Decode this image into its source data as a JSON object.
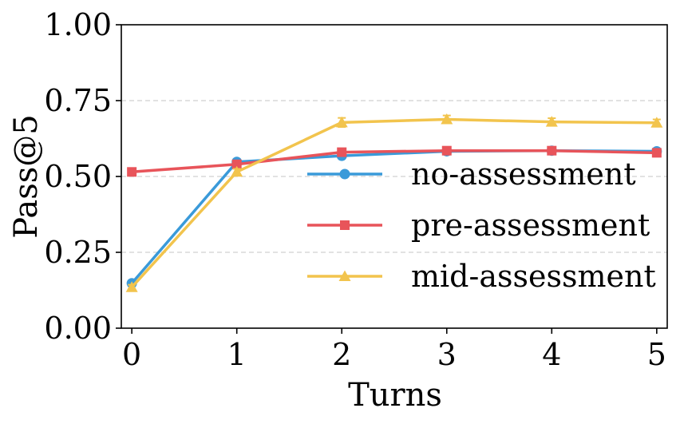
{
  "chart_data": {
    "type": "line",
    "xlabel": "Turns",
    "ylabel": "Pass@5",
    "x": [
      0,
      1,
      2,
      3,
      4,
      5
    ],
    "xlim": [
      -0.1,
      5.1
    ],
    "ylim": [
      0,
      1
    ],
    "xticks": [
      "0",
      "1",
      "2",
      "3",
      "4",
      "5"
    ],
    "yticks": [
      "0.00",
      "0.25",
      "0.50",
      "0.75",
      "1.00"
    ],
    "grid": "horizontal dashed at y ticks",
    "legend_position": "center-right",
    "series": [
      {
        "name": "no-assessment",
        "color": "#3a9ad9",
        "marker": "circle",
        "values": [
          0.148,
          0.548,
          0.568,
          0.583,
          0.585,
          0.583
        ],
        "error": [
          0.008,
          0.008,
          0.008,
          0.008,
          0.008,
          0.008
        ]
      },
      {
        "name": "pre-assessment",
        "color": "#e8545a",
        "marker": "square",
        "values": [
          0.515,
          0.54,
          0.58,
          0.585,
          0.585,
          0.578
        ],
        "error": [
          0.006,
          0.006,
          0.008,
          0.008,
          0.008,
          0.008
        ]
      },
      {
        "name": "mid-assessment",
        "color": "#f2c44d",
        "marker": "triangle",
        "values": [
          0.135,
          0.515,
          0.678,
          0.688,
          0.68,
          0.677
        ],
        "error": [
          0.008,
          0.01,
          0.015,
          0.013,
          0.012,
          0.011
        ]
      }
    ]
  }
}
